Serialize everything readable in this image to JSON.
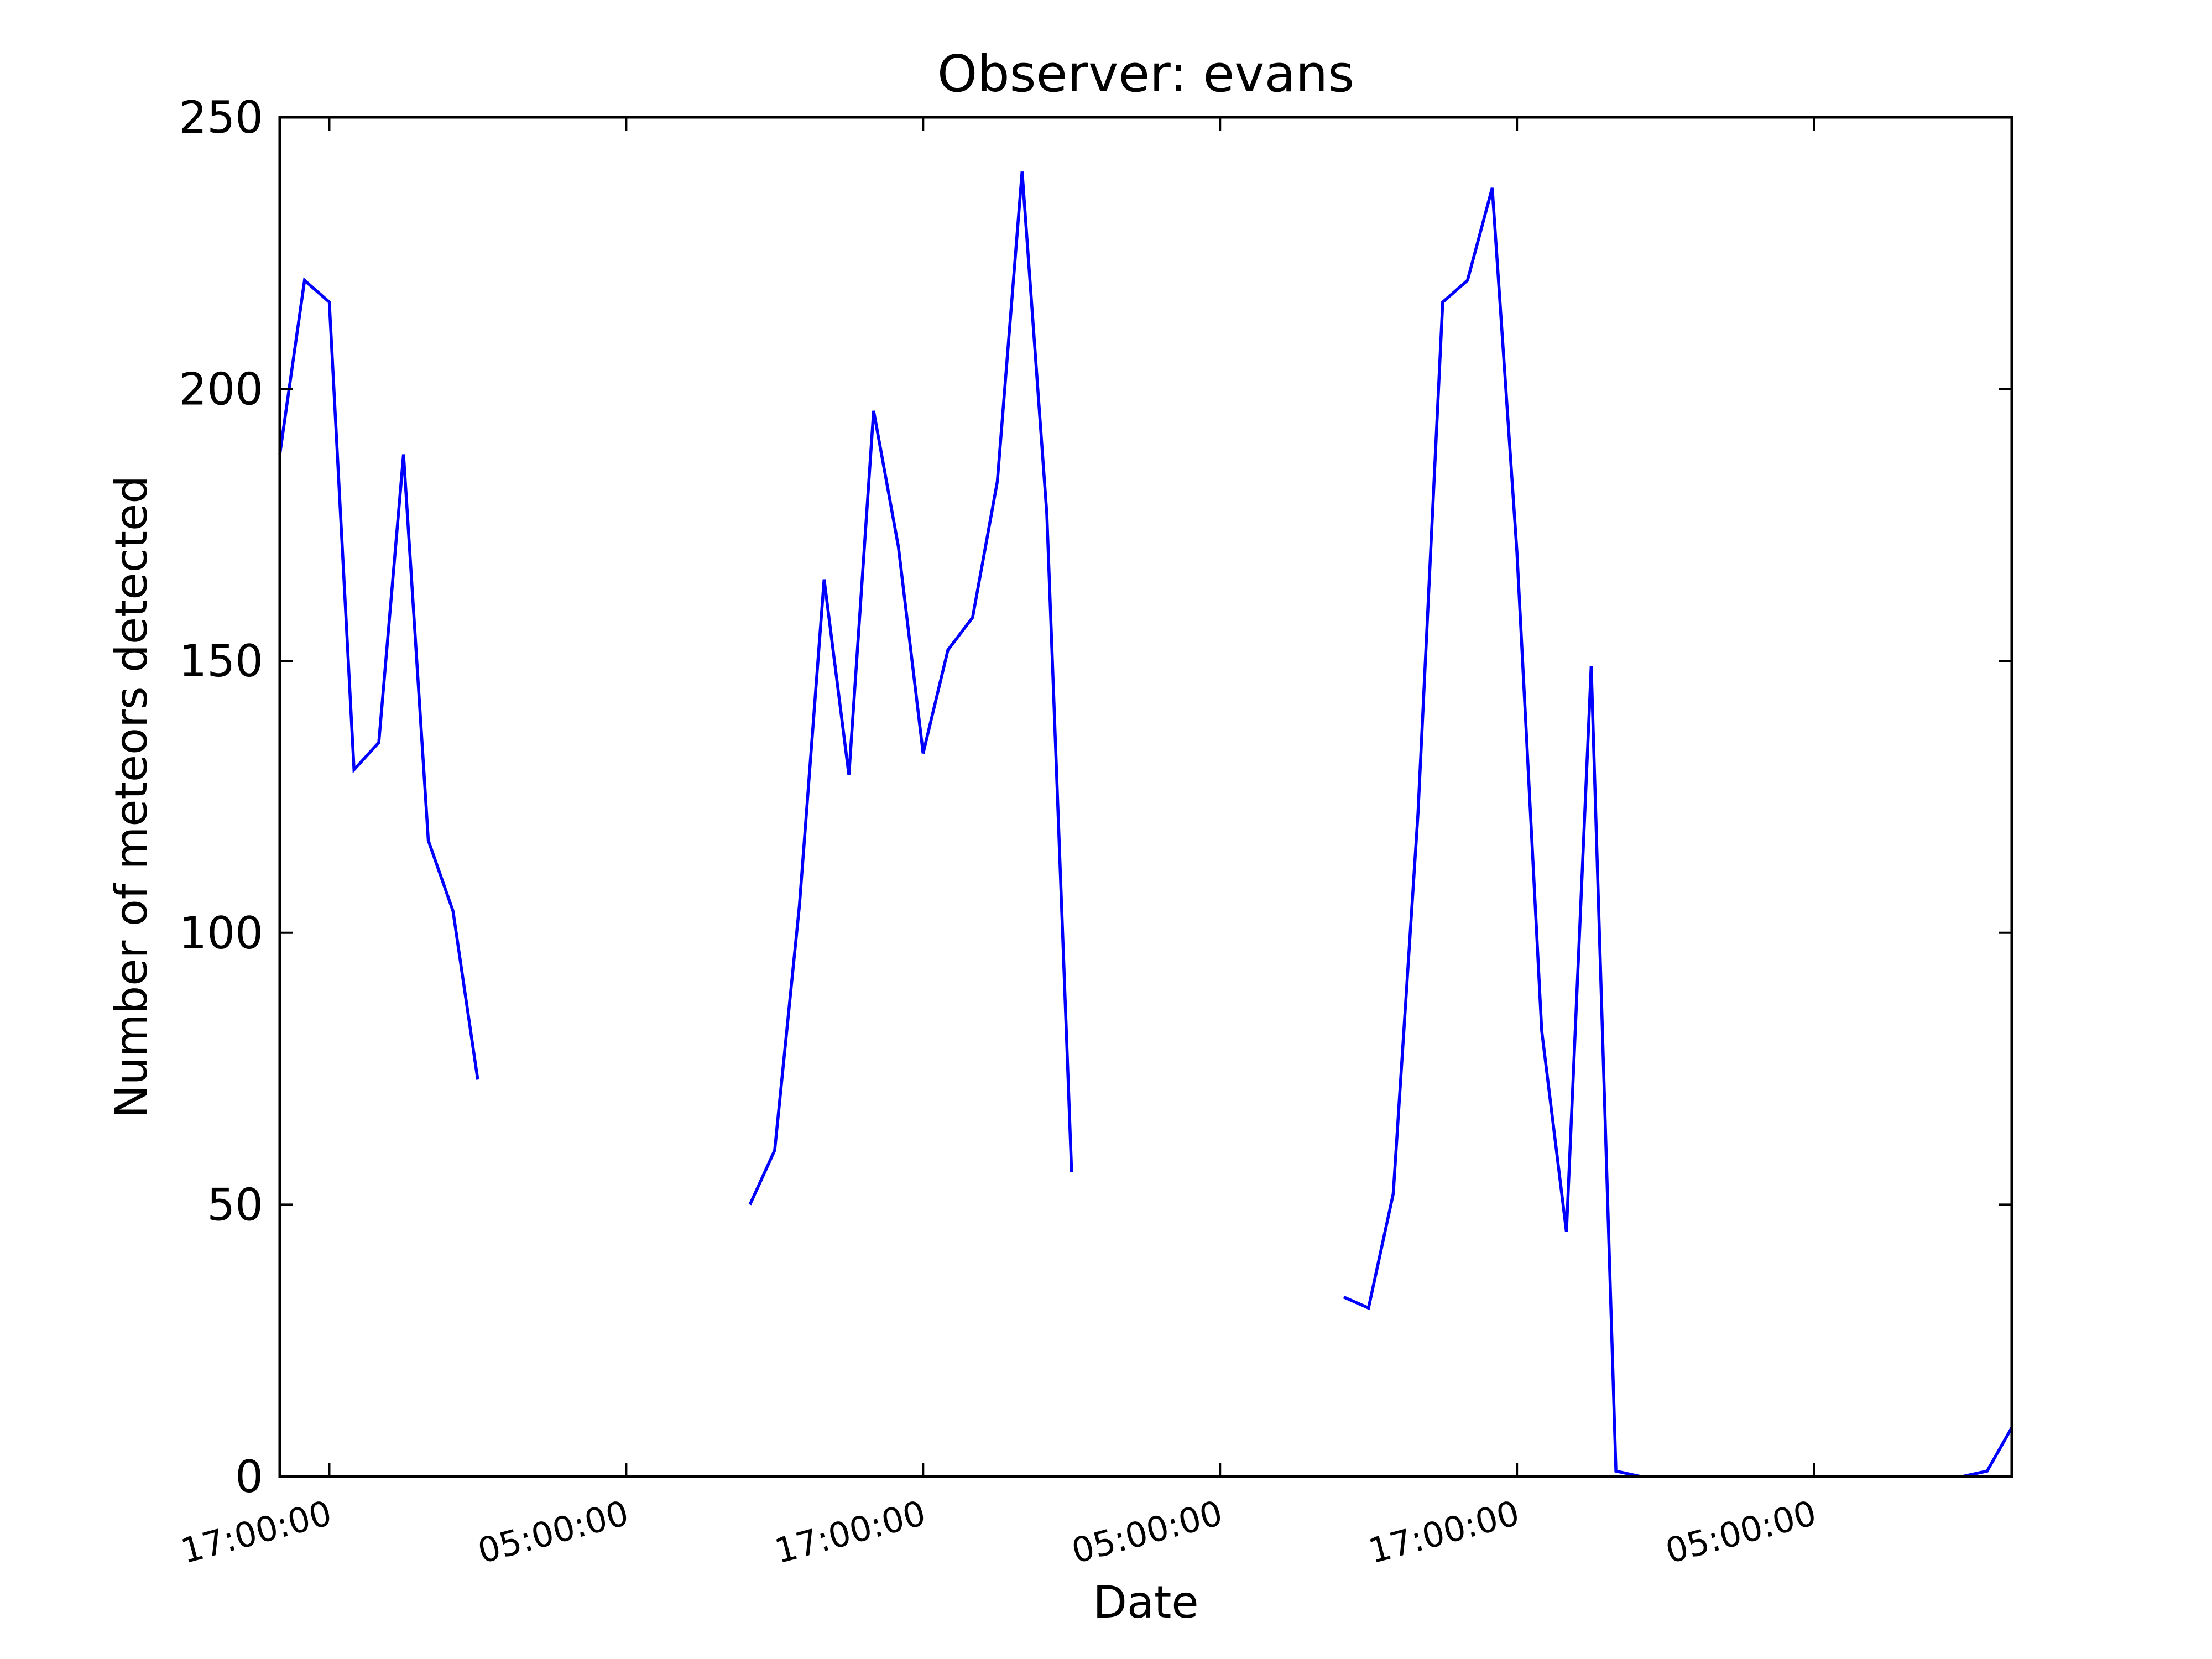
{
  "chart_data": {
    "type": "line",
    "title": "Observer: evans",
    "xlabel": "Date",
    "ylabel": "Number of meteors detected",
    "ylim": [
      0,
      250
    ],
    "xlim_hours": [
      15,
      85
    ],
    "yticks": [
      0,
      50,
      100,
      150,
      200,
      250
    ],
    "xticks": [
      {
        "hour": 17,
        "label": "17:00:00"
      },
      {
        "hour": 29,
        "label": "05:00:00"
      },
      {
        "hour": 41,
        "label": "17:00:00"
      },
      {
        "hour": 53,
        "label": "05:00:00"
      },
      {
        "hour": 65,
        "label": "17:00:00"
      },
      {
        "hour": 77,
        "label": "05:00:00"
      }
    ],
    "grid": false,
    "legend": "none",
    "colors": {
      "line": "#0000ff",
      "axes": "#000000"
    },
    "series": [
      {
        "segments": [
          [
            [
              15,
              188
            ],
            [
              16,
              220
            ],
            [
              17,
              216
            ],
            [
              18,
              130
            ],
            [
              19,
              135
            ],
            [
              20,
              188
            ],
            [
              21,
              117
            ],
            [
              22,
              104
            ],
            [
              23,
              73
            ]
          ],
          [
            [
              34,
              50
            ],
            [
              35,
              60
            ],
            [
              36,
              105
            ],
            [
              37,
              165
            ],
            [
              38,
              129
            ],
            [
              39,
              196
            ],
            [
              40,
              171
            ],
            [
              41,
              133
            ],
            [
              42,
              152
            ],
            [
              43,
              158
            ],
            [
              44,
              183
            ],
            [
              45,
              240
            ],
            [
              46,
              177
            ],
            [
              47,
              56
            ]
          ],
          [
            [
              58,
              33
            ],
            [
              59,
              31
            ],
            [
              60,
              52
            ],
            [
              61,
              122
            ],
            [
              62,
              216
            ],
            [
              63,
              220
            ],
            [
              64,
              237
            ],
            [
              65,
              170
            ],
            [
              66,
              82
            ],
            [
              67,
              45
            ],
            [
              68,
              149
            ],
            [
              69,
              1
            ],
            [
              70,
              0
            ],
            [
              71,
              0
            ],
            [
              72,
              0
            ],
            [
              73,
              0
            ],
            [
              74,
              0
            ],
            [
              75,
              0
            ],
            [
              76,
              0
            ],
            [
              77,
              0
            ],
            [
              78,
              0
            ],
            [
              79,
              0
            ],
            [
              80,
              0
            ],
            [
              81,
              0
            ],
            [
              82,
              0
            ],
            [
              83,
              0
            ],
            [
              84,
              1
            ],
            [
              85,
              9
            ]
          ]
        ]
      }
    ]
  }
}
